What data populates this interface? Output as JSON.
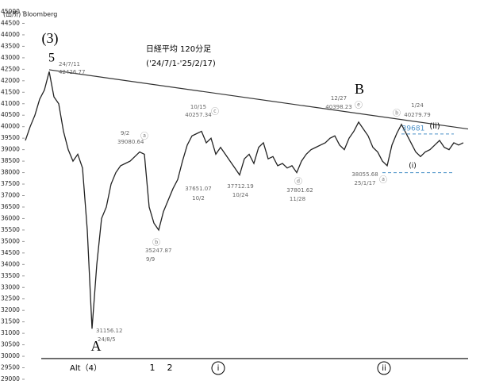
{
  "chart_data": {
    "type": "line",
    "ylim": [
      29000,
      45000
    ],
    "yticks": [
      29000,
      29500,
      30000,
      30500,
      31000,
      31500,
      32000,
      32500,
      33000,
      33500,
      34000,
      34500,
      35000,
      35500,
      36000,
      36500,
      37000,
      37500,
      38000,
      38500,
      39000,
      39500,
      40000,
      40500,
      41000,
      41500,
      42000,
      42500,
      43000,
      43500,
      44000,
      44500,
      45000
    ],
    "xlim": [
      0,
      92
    ],
    "color": "#222222",
    "values": [
      39400,
      40000,
      40500,
      41200,
      41600,
      42400,
      41300,
      41000,
      39800,
      39000,
      38500,
      38800,
      38200,
      35500,
      31200,
      34000,
      36000,
      36500,
      37500,
      38000,
      38300,
      38400,
      38500,
      38700,
      38900,
      38800,
      36500,
      35800,
      35500,
      36300,
      36800,
      37300,
      37700,
      38500,
      39200,
      39600,
      39700,
      39800,
      39300,
      39500,
      38800,
      39100,
      38800,
      38500,
      38200,
      37900,
      38600,
      38800,
      38400,
      39100,
      39300,
      38600,
      38700,
      38300,
      38400,
      38200,
      38300,
      38000,
      38500,
      38800,
      39000,
      39100,
      39200,
      39300,
      39500,
      39600,
      39200,
      39000,
      39500,
      39800,
      40200,
      39900,
      39600,
      39100,
      38900,
      38500,
      38300,
      39200,
      39700,
      40100,
      39700,
      39300,
      38900,
      38700,
      38900,
      39000,
      39200,
      39400,
      39100,
      39000,
      39300,
      39200,
      39300
    ],
    "axis_line": 29900,
    "trendline": {
      "color": "#333333",
      "from": [
        5,
        42480
      ],
      "to": [
        93,
        39900
      ]
    },
    "hlines": [
      {
        "value": 39681,
        "color": "#4a90c8",
        "from": 79
      },
      {
        "value": 38000,
        "color": "#4a90c8",
        "from": 75
      }
    ],
    "annotations": [
      "(出所) Bloomberg",
      "日経平均 120分足",
      "('24/7/1-'25/2/17)",
      "(3)",
      "5",
      "24/7/11",
      "42426.77",
      "A",
      "31156.12",
      "24/8/5",
      "Alt（4）",
      "1",
      "2",
      "9/2",
      "39080.64",
      "ⓐ",
      "35247.87",
      "9/9",
      "ⓑ",
      "10/15",
      "40257.34",
      "ⓒ",
      "37651.07",
      "10/2",
      "37712.19",
      "10/24",
      "ⓓ",
      "37801.62",
      "11/28",
      "B",
      "12/27",
      "40398.23",
      "ⓔ",
      "1/24",
      "40279.79",
      "ⓑ",
      "39681",
      "(ii)",
      "(i)",
      "38055.68",
      "25/1/17",
      "ⓐ",
      "i",
      "ii"
    ]
  }
}
